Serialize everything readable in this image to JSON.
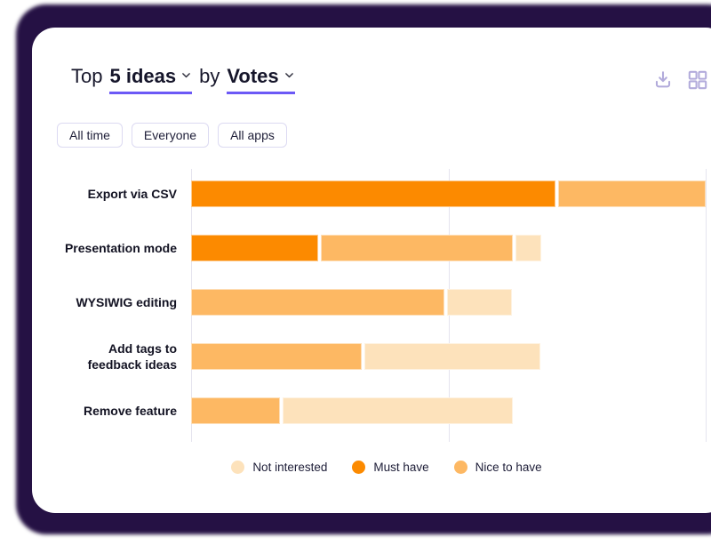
{
  "header": {
    "prefix": "Top",
    "ideas_dropdown": "5 ideas",
    "connector": "by",
    "metric_dropdown": "Votes"
  },
  "toolbar": {
    "icons": [
      "download-icon",
      "grid-layout-icon"
    ]
  },
  "filters": [
    {
      "label": "All time"
    },
    {
      "label": "Everyone"
    },
    {
      "label": "All apps"
    }
  ],
  "chart_data": {
    "type": "bar",
    "orientation": "horizontal",
    "stacked": true,
    "title": "Top 5 ideas by Votes",
    "categories": [
      "Export via CSV",
      "Presentation mode",
      "WYSIWIG editing",
      "Add tags to feedback ideas",
      "Remove feature"
    ],
    "series": [
      {
        "name": "Must have",
        "color": "#fc8a00",
        "values": [
          71,
          25,
          0,
          0,
          0
        ]
      },
      {
        "name": "Nice to have",
        "color": "#fdb863",
        "values": [
          29,
          37.5,
          49.5,
          33.5,
          17.5
        ]
      },
      {
        "name": "Not interested",
        "color": "#fde2bb",
        "values": [
          0,
          5.5,
          13,
          34.5,
          45
        ]
      }
    ],
    "legend": [
      {
        "label": "Not interested",
        "color": "#fde2bb"
      },
      {
        "label": "Must have",
        "color": "#fc8a00"
      },
      {
        "label": "Nice to have",
        "color": "#fdb863"
      }
    ],
    "xlim": [
      0,
      100
    ],
    "gridlines_percent": [
      0,
      50,
      100
    ],
    "tick_labels_shown": false,
    "legend_position": "bottom",
    "units": "share of axis (no numeric ticks shown)"
  },
  "colors": {
    "accent_underline": "#6c59f6",
    "toolbar_icon": "#b2abdb",
    "backdrop": "#251144",
    "gridline": "#e5e4ef",
    "pill_border": "#dcdaf2"
  }
}
